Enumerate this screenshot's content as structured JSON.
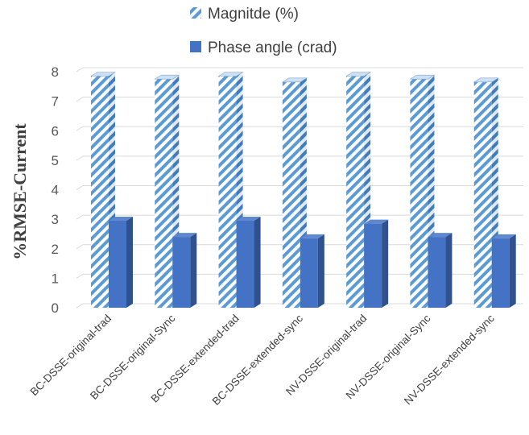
{
  "chart_data": {
    "type": "bar",
    "categories": [
      "BC-DSSE-original-trad",
      "BC-DSSE-original-Sync",
      "BC-DSSE-extended-trad",
      "BC-DSSE-extended-sync",
      "NV-DSSE-original-trad",
      "NV-DSSE-original-Sync",
      "NV-DSSE-extended-sync"
    ],
    "series": [
      {
        "name": "Magnitde (%)",
        "values": [
          7.85,
          7.75,
          7.85,
          7.65,
          7.85,
          7.75,
          7.65
        ],
        "color": "#5B9BD5",
        "pattern": "diagonal-stripes"
      },
      {
        "name": "Phase angle (crad)",
        "values": [
          2.95,
          2.4,
          2.95,
          2.35,
          2.85,
          2.4,
          2.35
        ],
        "color": "#4472C4",
        "pattern": "solid"
      }
    ],
    "ylabel": "%RMSE-Current",
    "xlabel": "",
    "ylim": [
      0,
      8
    ],
    "yticks": [
      0,
      1,
      2,
      3,
      4,
      5,
      6,
      7,
      8
    ],
    "grid": true,
    "legend_position": "top",
    "style": "3d-clustered-column"
  }
}
